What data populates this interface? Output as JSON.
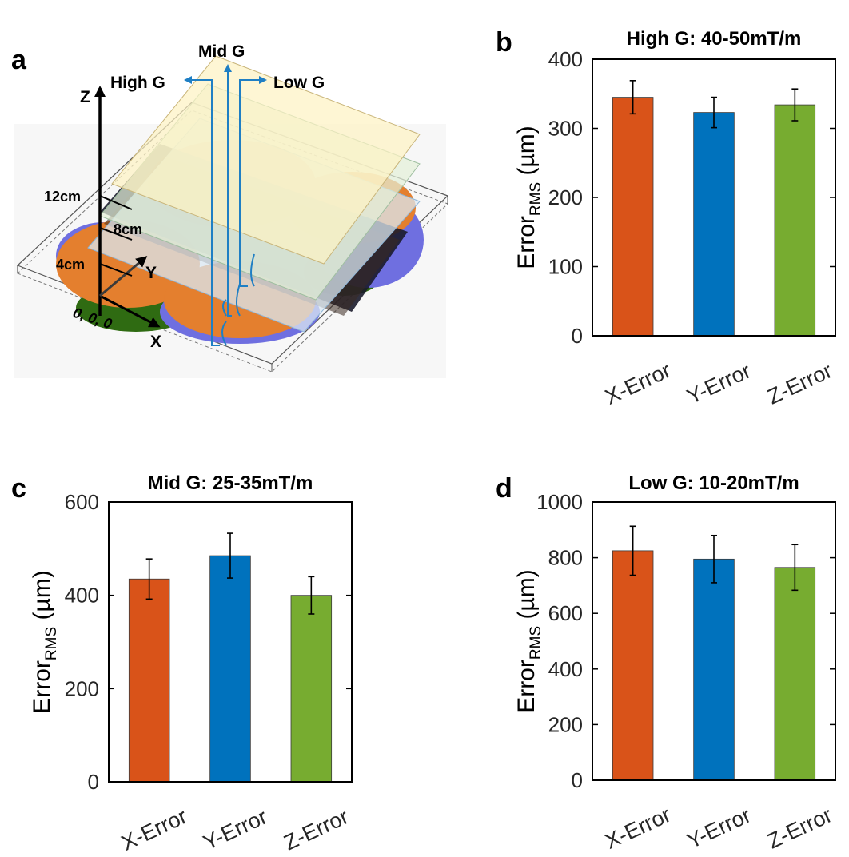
{
  "panel_letters": {
    "a": "a",
    "b": "b",
    "c": "c",
    "d": "d"
  },
  "diagram": {
    "labels": {
      "high_g": "High G",
      "mid_g": "Mid G",
      "low_g": "Low G",
      "z_axis": "Z",
      "x_axis": "X",
      "y_axis": "Y",
      "dim_12cm": "12cm",
      "dim_8cm": "8cm",
      "dim_4cm": "4cm",
      "origin": "0, 0, 0"
    },
    "colors": {
      "arrow": "#1f7fc4",
      "coil_orange": "#e47f2e",
      "coil_purple": "#6f6fe0",
      "coil_green": "#2f6b12",
      "plane_top": "#fdf2c4",
      "plane_mid": "#e3f0d8",
      "plane_low": "#dbe8f3"
    }
  },
  "chart_data": [
    {
      "id": "b",
      "type": "bar",
      "title": "High G: 40-50mT/m",
      "ylabel_main": "Error",
      "ylabel_sub": "RMS",
      "ylabel_unit": " (µm)",
      "categories": [
        "X-Error",
        "Y-Error",
        "Z-Error"
      ],
      "values": [
        345,
        323,
        334
      ],
      "errors": [
        24,
        22,
        23
      ],
      "colors": [
        "#d95319",
        "#0072bd",
        "#77ac30"
      ],
      "ylim": [
        0,
        400
      ],
      "yticks": [
        "0",
        "100",
        "200",
        "300",
        "400"
      ],
      "grid": false
    },
    {
      "id": "c",
      "type": "bar",
      "title": "Mid G: 25-35mT/m",
      "ylabel_main": "Error",
      "ylabel_sub": "RMS",
      "ylabel_unit": " (µm)",
      "categories": [
        "X-Error",
        "Y-Error",
        "Z-Error"
      ],
      "values": [
        435,
        485,
        400
      ],
      "errors": [
        43,
        48,
        40
      ],
      "colors": [
        "#d95319",
        "#0072bd",
        "#77ac30"
      ],
      "ylim": [
        0,
        600
      ],
      "yticks": [
        "0",
        "200",
        "400",
        "600"
      ],
      "grid": false
    },
    {
      "id": "d",
      "type": "bar",
      "title": "Low G: 10-20mT/m",
      "ylabel_main": "Error",
      "ylabel_sub": "RMS",
      "ylabel_unit": " (µm)",
      "categories": [
        "X-Error",
        "Y-Error",
        "Z-Error"
      ],
      "values": [
        825,
        795,
        765
      ],
      "errors": [
        88,
        85,
        82
      ],
      "colors": [
        "#d95319",
        "#0072bd",
        "#77ac30"
      ],
      "ylim": [
        0,
        1000
      ],
      "yticks": [
        "0",
        "200",
        "400",
        "600",
        "800",
        "1000"
      ],
      "grid": false
    }
  ]
}
